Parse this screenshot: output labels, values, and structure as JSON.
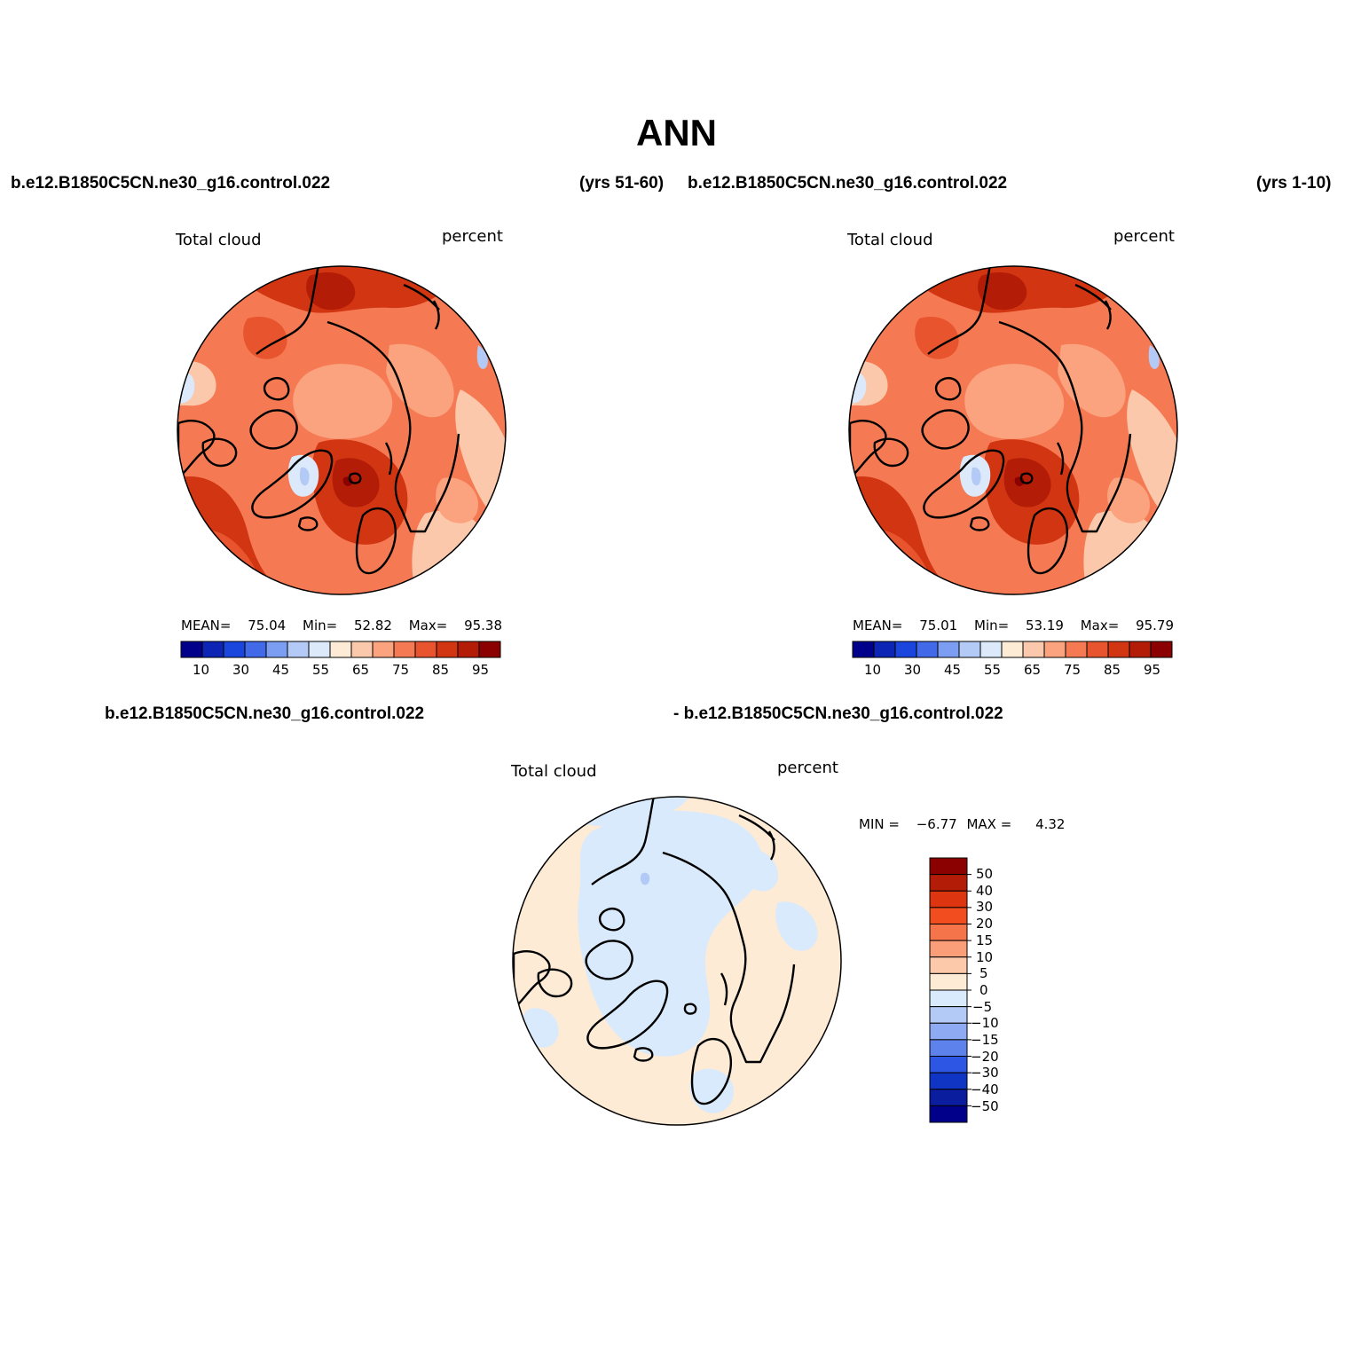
{
  "figure": {
    "title": "ANN"
  },
  "panels": {
    "top_left": {
      "case": "b.e12.B1850C5CN.ne30_g16.control.022",
      "years": "(yrs 51-60)",
      "variable": "Total cloud",
      "units": "percent",
      "stats": {
        "mean_label": "MEAN=",
        "mean_value": "75.04",
        "min_label": "Min=",
        "min_value": "52.82",
        "max_label": "Max=",
        "max_value": "95.38"
      }
    },
    "top_right": {
      "case": "b.e12.B1850C5CN.ne30_g16.control.022",
      "years": "(yrs 1-10)",
      "variable": "Total cloud",
      "units": "percent",
      "stats": {
        "mean_label": "MEAN=",
        "mean_value": "75.01",
        "min_label": "Min=",
        "min_value": "53.19",
        "max_label": "Max=",
        "max_value": "95.79"
      }
    },
    "difference": {
      "case_a": "b.e12.B1850C5CN.ne30_g16.control.022",
      "case_b": "- b.e12.B1850C5CN.ne30_g16.control.022",
      "variable": "Total cloud",
      "units": "percent",
      "stats": {
        "min_label": "MIN =",
        "min_value": "−6.77",
        "max_label": "MAX =",
        "max_value": "4.32"
      }
    }
  },
  "colorbars": {
    "absolute": {
      "ticks": [
        "10",
        "30",
        "45",
        "55",
        "65",
        "75",
        "85",
        "95"
      ],
      "colors": [
        "#00008b",
        "#0d25b4",
        "#1b46dd",
        "#4169e8",
        "#7b9ef2",
        "#b3caf7",
        "#dbe9fb",
        "#fdebd6",
        "#fcc8ab",
        "#fba27e",
        "#f57a53",
        "#e8542d",
        "#d23512",
        "#b31d07",
        "#8b0000"
      ]
    },
    "difference": {
      "ticks": [
        "50",
        "40",
        "30",
        "20",
        "15",
        "10",
        "5",
        "0",
        "−5",
        "−10",
        "−15",
        "−20",
        "−30",
        "−40",
        "−50"
      ],
      "colors": [
        "#8b0000",
        "#b31d07",
        "#dc3510",
        "#f24d1f",
        "#f6744a",
        "#f99e78",
        "#fcc9ab",
        "#fdebd6",
        "#d9eafc",
        "#b3caf7",
        "#8eaaf2",
        "#5e82ec",
        "#2d56e4",
        "#1035c4",
        "#0a1d9e",
        "#00008b"
      ]
    }
  },
  "palette": {
    "land_outline": "#000000",
    "abs_dark": "#b31d07",
    "abs_strong": "#d23512",
    "abs_mid": "#e8542d",
    "abs_light": "#f57a53",
    "abs_pale": "#fba27e",
    "abs_paler": "#fcc8ab",
    "abs_cream": "#fdebd6",
    "abs_blue": "#dbe9fb",
    "abs_blue2": "#b3caf7",
    "abs_deep": "#8b0000",
    "diff_pos": "#fdebd6",
    "diff_neg": "#d9eafc",
    "diff_neg2": "#b3caf7"
  }
}
